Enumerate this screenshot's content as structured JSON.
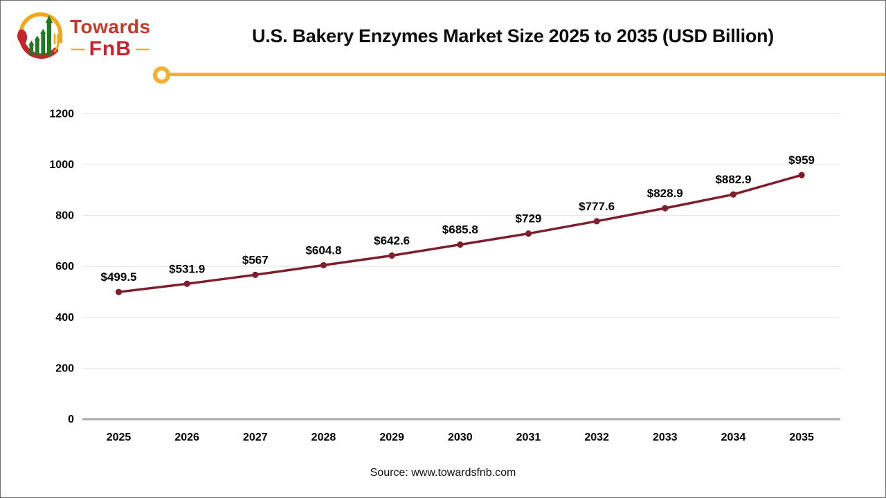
{
  "logo": {
    "line1": "Towards",
    "line2": "FnB",
    "dash_left": "—",
    "dash_right": "—"
  },
  "header": {
    "title": "U.S. Bakery Enzymes Market Size 2025 to 2035 (USD Billion)"
  },
  "footer": {
    "source": "Source: www.towardsfnb.com"
  },
  "colors": {
    "accent_gold": "#f4af34",
    "line_maroon": "#7e1f2e",
    "grid": "#e9e9e9",
    "axis": "#a9a9a9",
    "tick_text": "#000000"
  },
  "chart_data": {
    "type": "line",
    "title": "U.S. Bakery Enzymes Market Size 2025 to 2035 (USD Billion)",
    "categories": [
      "2025",
      "2026",
      "2027",
      "2028",
      "2029",
      "2030",
      "2031",
      "2032",
      "2033",
      "2034",
      "2035"
    ],
    "values": [
      499.5,
      531.9,
      567,
      604.8,
      642.6,
      685.8,
      729,
      777.6,
      828.9,
      882.9,
      959
    ],
    "data_labels": [
      "$499.5",
      "$531.9",
      "$567",
      "$604.8",
      "$642.6",
      "$685.8",
      "$729",
      "$777.6",
      "$828.9",
      "$882.9",
      "$959"
    ],
    "yticks": [
      0,
      200,
      400,
      600,
      800,
      1000,
      1200
    ],
    "ylim": [
      0,
      1200
    ],
    "xlabel": "",
    "ylabel": "",
    "grid": true,
    "legend": "none",
    "line_color": "#7e1f2e",
    "marker": "circle"
  }
}
